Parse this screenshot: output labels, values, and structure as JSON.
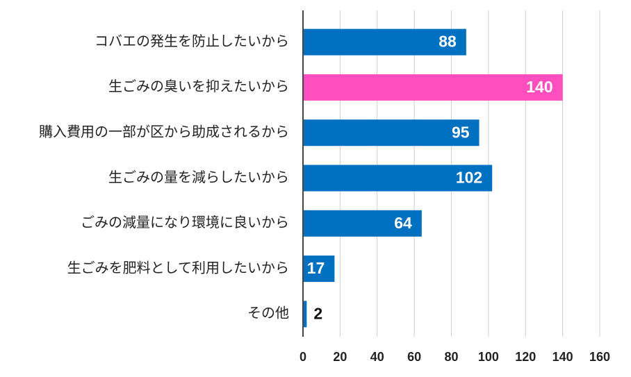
{
  "chart_data": {
    "type": "hbar",
    "categories": [
      "コバエの発生を防止したいから",
      "生ごみの臭いを抑えたいから",
      "購入費用の一部が区から助成されるから",
      "生ごみの量を減らしたいから",
      "ごみの減量になり環境に良いから",
      "生ごみを肥料として利用したいから",
      "その他"
    ],
    "values": [
      88,
      140,
      95,
      102,
      64,
      17,
      2
    ],
    "colors": [
      "#0070c0",
      "#ff4fbf",
      "#0070c0",
      "#0070c0",
      "#0070c0",
      "#0070c0",
      "#0070c0"
    ],
    "xlim": [
      0,
      160
    ],
    "xticks": [
      0,
      20,
      40,
      60,
      80,
      100,
      120,
      140,
      160
    ],
    "grid": true
  }
}
